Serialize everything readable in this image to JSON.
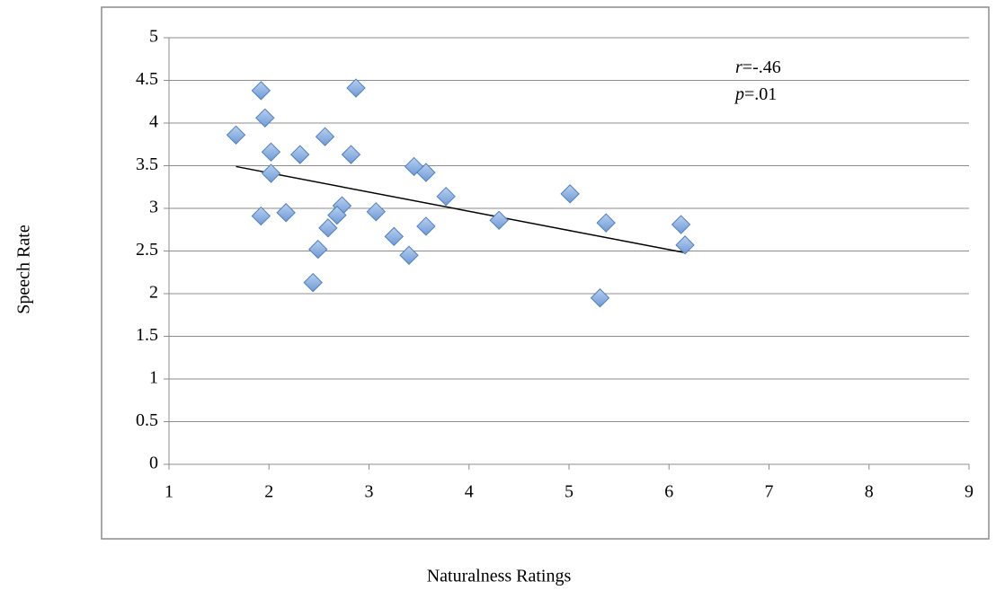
{
  "chart_data": {
    "type": "scatter",
    "title": null,
    "x_label": "Naturalness Ratings",
    "y_label": "Speech Rate",
    "x": [
      1.67,
      1.92,
      1.96,
      2.02,
      2.02,
      1.92,
      2.17,
      2.31,
      2.56,
      2.87,
      2.82,
      2.73,
      2.68,
      2.59,
      2.49,
      2.44,
      3.07,
      3.25,
      3.4,
      3.45,
      3.57,
      3.57,
      3.77,
      4.3,
      5.01,
      5.37,
      5.31,
      6.12,
      6.16
    ],
    "values": [
      3.86,
      4.38,
      4.06,
      3.66,
      3.41,
      2.91,
      2.95,
      3.63,
      3.84,
      4.41,
      3.63,
      3.03,
      2.92,
      2.77,
      2.52,
      2.13,
      2.96,
      2.67,
      2.45,
      3.49,
      3.42,
      2.79,
      3.14,
      2.86,
      3.17,
      2.83,
      1.95,
      2.81,
      2.57
    ],
    "color": "#7ea6dc",
    "trendline": {
      "x": [
        1.67,
        6.16
      ],
      "values": [
        3.49,
        2.48
      ],
      "color": "#000000"
    },
    "annotations": [
      {
        "italic": "r",
        "text": "=-.46"
      },
      {
        "italic": "p",
        "text": "=.01"
      }
    ],
    "xlim": [
      1,
      9
    ],
    "xticks": [
      1,
      2,
      3,
      4,
      5,
      6,
      7,
      8,
      9
    ],
    "ylim": [
      0,
      5
    ],
    "yticks": [
      0,
      0.5,
      1,
      1.5,
      2,
      2.5,
      3,
      3.5,
      4,
      4.5,
      5
    ],
    "grid": true
  }
}
